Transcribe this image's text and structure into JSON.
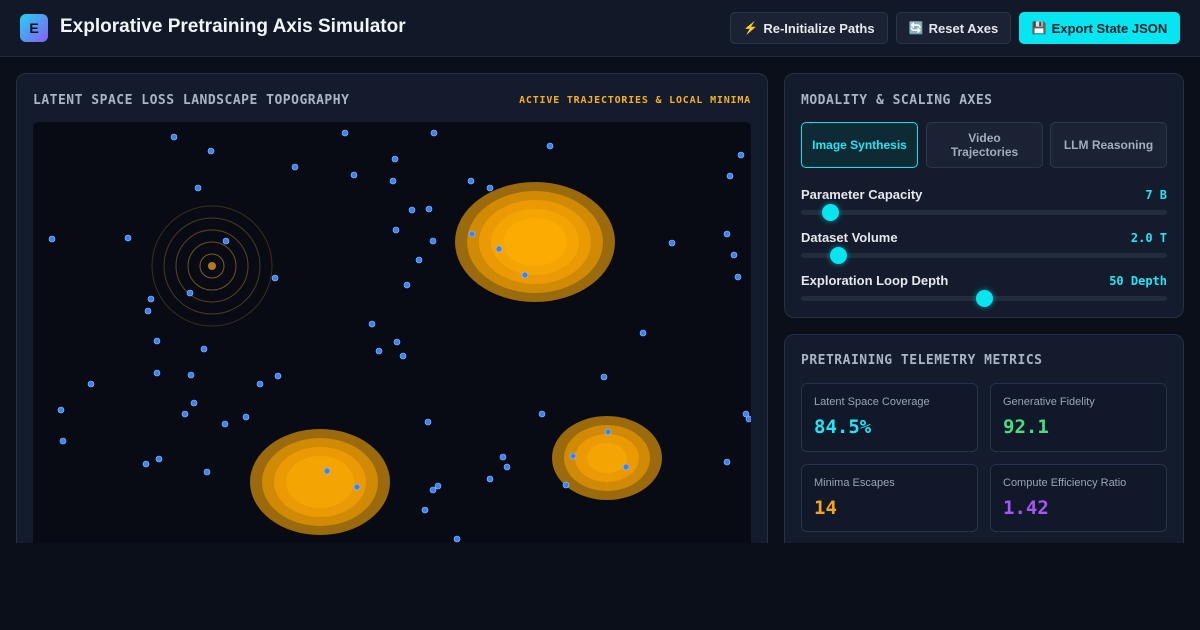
{
  "header": {
    "logo_letter": "E",
    "title": "Explorative Pretraining Axis Simulator",
    "buttons": {
      "reinit": {
        "icon": "⚡",
        "label": "Re-Initialize Paths"
      },
      "reset": {
        "icon": "🔄",
        "label": "Reset Axes"
      },
      "export": {
        "icon": "💾",
        "label": "Export State JSON"
      }
    }
  },
  "landscape": {
    "title": "LATENT SPACE LOSS LANDSCAPE TOPOGRAPHY",
    "subtitle": "ACTIVE TRAJECTORIES & LOCAL MINIMA",
    "colors": {
      "minima": "#f6a41b",
      "particle": "#3b82f6",
      "origin": "#b7791f"
    }
  },
  "axes": {
    "title": "MODALITY & SCALING AXES",
    "modalities": [
      {
        "label": "Image Synthesis",
        "active": true
      },
      {
        "label": "Video Trajectories",
        "active": false
      },
      {
        "label": "LLM Reasoning",
        "active": false
      }
    ],
    "sliders": [
      {
        "label": "Parameter Capacity",
        "value": "7 B",
        "fraction": 0.08
      },
      {
        "label": "Dataset Volume",
        "value": "2.0 T",
        "fraction": 0.1
      },
      {
        "label": "Exploration Loop Depth",
        "value": "50 Depth",
        "fraction": 0.5
      }
    ]
  },
  "telemetry": {
    "title": "PRETRAINING TELEMETRY METRICS",
    "metrics": [
      {
        "label": "Latent Space Coverage",
        "value": "84.5%",
        "color": "#22e5f5"
      },
      {
        "label": "Generative Fidelity",
        "value": "92.1",
        "color": "#4ade80"
      },
      {
        "label": "Minima Escapes",
        "value": "14",
        "color": "#f6a41b"
      },
      {
        "label": "Compute Efficiency Ratio",
        "value": "1.42",
        "color": "#a855f7"
      }
    ]
  }
}
